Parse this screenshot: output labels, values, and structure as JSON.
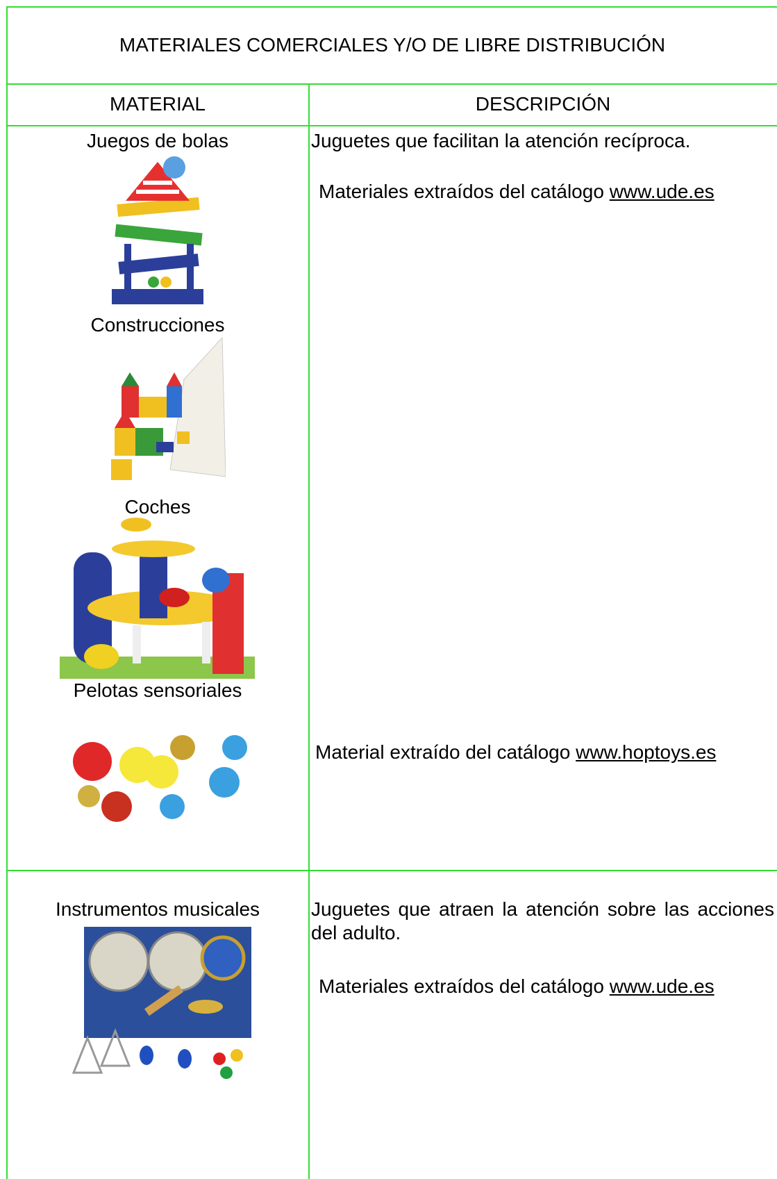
{
  "header": {
    "title": "MATERIALES COMERCIALES Y/O DE LIBRE DISTRIBUCIÓN"
  },
  "table": {
    "columns": [
      "MATERIAL",
      "DESCRIPCIÓN"
    ],
    "rows": [
      {
        "materials": [
          "Juegos de bolas",
          "Construcciones",
          "Coches",
          "Pelotas sensoriales"
        ],
        "description": "Juguetes que facilitan la atención recíproca.",
        "sources": [
          {
            "text": "Materiales extraídos del catálogo",
            "link": "www.ude.es"
          },
          {
            "text": "Material extraído del catálogo",
            "link": "www.hoptoys.es"
          }
        ]
      },
      {
        "materials": [
          "Instrumentos musicales"
        ],
        "description": "Juguetes que atraen la atención sobre las acciones del adulto.",
        "sources": [
          {
            "text": "Materiales extraídos del catálogo",
            "link": "www.ude.es"
          }
        ]
      }
    ]
  }
}
